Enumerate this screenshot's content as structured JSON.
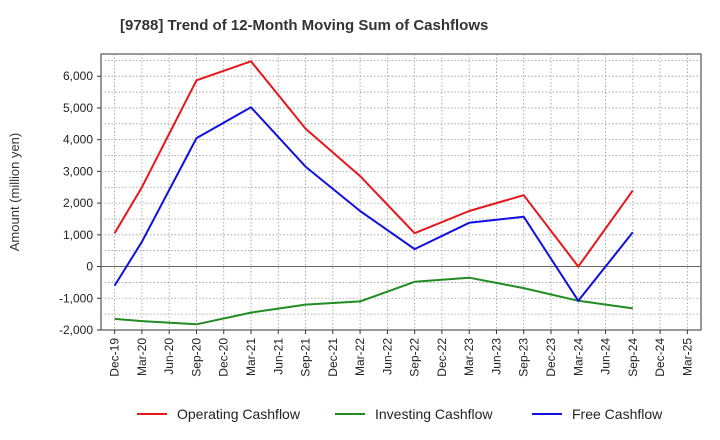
{
  "chart_data": {
    "type": "line",
    "title": "[9788]  Trend of 12-Month Moving Sum of Cashflows",
    "ylabel": "Amount (million yen)",
    "xlabel": "",
    "categories": [
      "Dec-19",
      "Mar-20",
      "Jun-20",
      "Sep-20",
      "Dec-20",
      "Mar-21",
      "Jun-21",
      "Sep-21",
      "Dec-21",
      "Mar-22",
      "Jun-22",
      "Sep-22",
      "Dec-22",
      "Mar-23",
      "Jun-23",
      "Sep-23",
      "Dec-23",
      "Mar-24",
      "Jun-24",
      "Sep-24",
      "Dec-24",
      "Mar-25"
    ],
    "ylim": [
      -2000,
      6700
    ],
    "yticks": [
      -2000,
      -1000,
      0,
      1000,
      2000,
      3000,
      4000,
      5000,
      6000
    ],
    "ytick_labels": [
      "-2,000",
      "-1,000",
      "0",
      "1,000",
      "2,000",
      "3,000",
      "4,000",
      "5,000",
      "6,000"
    ],
    "grid": true,
    "legend_position": "bottom",
    "series": [
      {
        "name": "Operating Cashflow",
        "color": "#e8161b",
        "values": [
          1050,
          2500,
          null,
          5870,
          null,
          6470,
          null,
          4350,
          null,
          2850,
          null,
          1050,
          null,
          1750,
          null,
          2250,
          null,
          0,
          null,
          2400,
          null,
          null
        ]
      },
      {
        "name": "Investing Cashflow",
        "color": "#228b22",
        "values": [
          -1650,
          -1720,
          null,
          -1820,
          null,
          -1450,
          null,
          -1200,
          null,
          -1100,
          null,
          -480,
          null,
          -350,
          null,
          -680,
          null,
          -1080,
          null,
          -1320,
          null,
          null
        ]
      },
      {
        "name": "Free Cashflow",
        "color": "#1010e0",
        "values": [
          -600,
          780,
          null,
          4050,
          null,
          5020,
          null,
          3150,
          null,
          1750,
          null,
          550,
          null,
          1380,
          null,
          1570,
          null,
          -1080,
          null,
          1080,
          null,
          null
        ]
      }
    ]
  }
}
